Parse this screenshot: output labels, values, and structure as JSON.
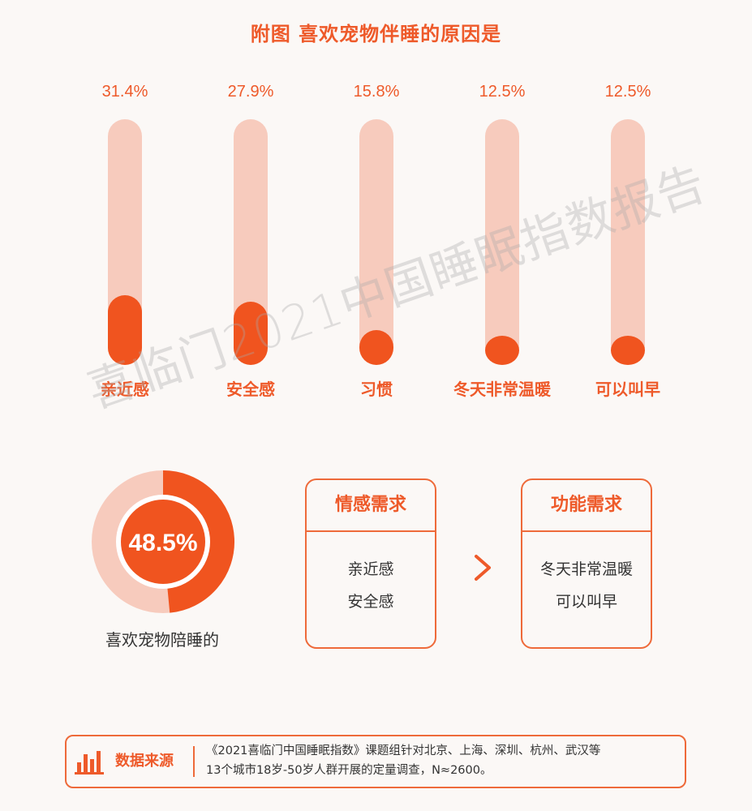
{
  "title": "附图 喜欢宠物伴睡的原因是",
  "colors": {
    "accent": "#ee5a2a",
    "accent_dark": "#f0541f",
    "track": "#f7cbbd",
    "text": "#333333"
  },
  "chart_data": {
    "type": "bar",
    "categories": [
      "亲近感",
      "安全感",
      "习惯",
      "冬天非常温暖",
      "可以叫早"
    ],
    "values": [
      31.4,
      27.9,
      15.8,
      12.5,
      12.5
    ],
    "value_labels": [
      "31.4%",
      "27.9%",
      "15.8%",
      "12.5%",
      "12.5%"
    ],
    "title": "附图 喜欢宠物伴睡的原因是",
    "ylim": [
      0,
      100
    ],
    "grid": false
  },
  "donut": {
    "value": 48.5,
    "label": "48.5%",
    "caption": "喜欢宠物陪睡的"
  },
  "cards": [
    {
      "title": "情感需求",
      "items": [
        "亲近感",
        "安全感"
      ]
    },
    {
      "title": "功能需求",
      "items": [
        "冬天非常温暖",
        "可以叫早"
      ]
    }
  ],
  "arrow_icon": "chevron-right-icon",
  "source": {
    "label": "数据来源",
    "icon": "bar-chart-icon",
    "line1": "《2021喜临门中国睡眠指数》课题组针对北京、上海、深圳、杭州、武汉等",
    "line2": "13个城市18岁-50岁人群开展的定量调查，N≈2600。"
  },
  "watermark": "喜临门2021中国睡眠指数报告"
}
